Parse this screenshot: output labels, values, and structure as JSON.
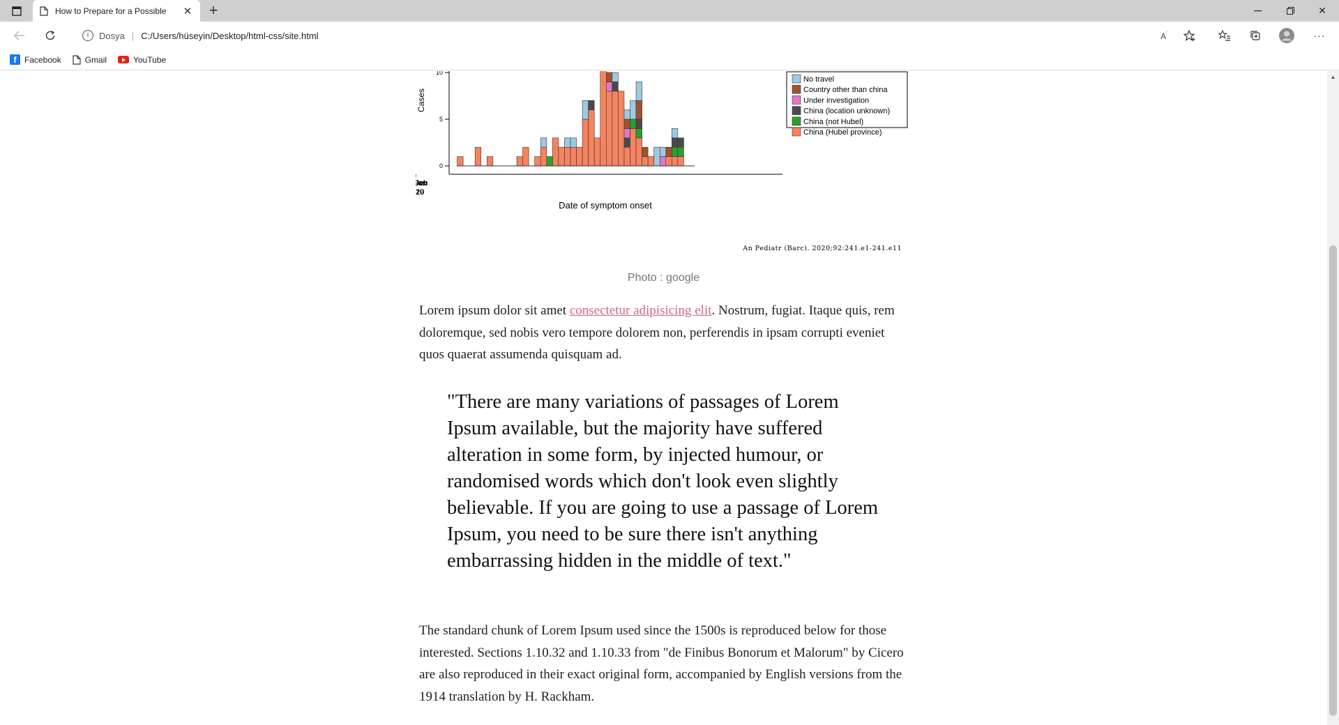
{
  "browser": {
    "tab_title": "How to Prepare for a Possible Coronavirus",
    "address_scheme": "Dosya",
    "address_url": "C:/Users/hüseyin/Desktop/html-css/site.html",
    "bookmarks": [
      {
        "label": "Facebook",
        "icon": "facebook-icon"
      },
      {
        "label": "Gmail",
        "icon": "page-icon"
      },
      {
        "label": "YouTube",
        "icon": "youtube-icon"
      }
    ]
  },
  "article": {
    "photo_caption": "Photo : google",
    "paragraph1_before_link": "Lorem ipsum dolor sit amet ",
    "paragraph1_link": "consectetur adipisicing elit",
    "paragraph1_after_link": ". Nostrum, fugiat. Itaque quis, rem doloremque, sed nobis vero tempore dolorem non, perferendis in ipsam corrupti eveniet quos quaerat assumenda quisquam ad.",
    "blockquote": "\"There are many variations of passages of Lorem Ipsum available, but the majority have suffered alteration in some form, by injected humour, or randomised words which don't look even slightly believable. If you are going to use a passage of Lorem Ipsum, you need to be sure there isn't anything embarrassing hidden in the middle of text.\"",
    "paragraph2": "The standard chunk of Lorem Ipsum used since the 1500s is reproduced below for those interested. Sections 1.10.32 and 1.10.33 from \"de Finibus Bonorum et Malorum\" by Cicero are also reproduced in their exact original form, accompanied by English versions from the 1914 translation by H. Rackham."
  },
  "chart_data": {
    "type": "bar",
    "stacked": true,
    "xlabel": "Date of symptom onset",
    "ylabel": "Cases",
    "source": "An Pediatr (Barc). 2020;92:241.e1-241.e11",
    "ylim": [
      0,
      11
    ],
    "yticks": [
      0,
      5,
      10
    ],
    "xticks": [
      {
        "line1": "30 Dec",
        "line2": "2019",
        "index": 1
      },
      {
        "line1": "06 Jan",
        "line2": "2020",
        "index": 8
      },
      {
        "line1": "13 Jan",
        "line2": "2020",
        "index": 15
      },
      {
        "line1": "20 Jan",
        "line2": "2020",
        "index": 22
      },
      {
        "line1": "27 Jan",
        "line2": "2020",
        "index": 29
      },
      {
        "line1": "03 Feb",
        "line2": "2020",
        "index": 36
      }
    ],
    "legend_position": "top-right",
    "legend": [
      {
        "key": "notravel",
        "label": "No travel",
        "color": "#9ecae1"
      },
      {
        "key": "other",
        "label": "Country other than china",
        "color": "#a0522d"
      },
      {
        "key": "invest",
        "label": "Under investigation",
        "color": "#e377c2"
      },
      {
        "key": "unknown",
        "label": "China (location unknown)",
        "color": "#4a4a4a"
      },
      {
        "key": "nothubei",
        "label": "China (not Hubel)",
        "color": "#2ca02c"
      },
      {
        "key": "hubei",
        "label": "China (Hubel province)",
        "color": "#f4845f"
      }
    ],
    "stack_order": [
      "hubei",
      "nothubei",
      "unknown",
      "invest",
      "other",
      "notravel"
    ],
    "days": [
      {
        "i": 1,
        "hubei": 1
      },
      {
        "i": 4,
        "hubei": 2
      },
      {
        "i": 6,
        "hubei": 1
      },
      {
        "i": 11,
        "hubei": 1
      },
      {
        "i": 12,
        "hubei": 2
      },
      {
        "i": 14,
        "hubei": 1
      },
      {
        "i": 15,
        "hubei": 2,
        "notravel": 1
      },
      {
        "i": 16,
        "nothubei": 1
      },
      {
        "i": 17,
        "hubei": 3
      },
      {
        "i": 18,
        "hubei": 2
      },
      {
        "i": 19,
        "hubei": 2,
        "notravel": 1
      },
      {
        "i": 20,
        "hubei": 2,
        "notravel": 1
      },
      {
        "i": 21,
        "hubei": 2
      },
      {
        "i": 22,
        "hubei": 5,
        "notravel": 2
      },
      {
        "i": 23,
        "hubei": 6,
        "unknown": 1
      },
      {
        "i": 24,
        "hubei": 3
      },
      {
        "i": 25,
        "hubei": 13
      },
      {
        "i": 26,
        "hubei": 8,
        "other": 1,
        "invest": 1
      },
      {
        "i": 27,
        "hubei": 8,
        "unknown": 1,
        "notravel": 1
      },
      {
        "i": 28,
        "hubei": 8
      },
      {
        "i": 29,
        "hubei": 2,
        "unknown": 1,
        "invest": 1,
        "other": 1,
        "notravel": 1
      },
      {
        "i": 30,
        "hubei": 4,
        "nothubei": 1,
        "notravel": 2
      },
      {
        "i": 31,
        "hubei": 3,
        "nothubei": 1,
        "unknown": 1,
        "other": 2,
        "notravel": 2
      },
      {
        "i": 32,
        "hubei": 1,
        "other": 1
      },
      {
        "i": 33,
        "hubei": 1
      },
      {
        "i": 34,
        "notravel": 2
      },
      {
        "i": 35,
        "invest": 1,
        "notravel": 1
      },
      {
        "i": 36,
        "hubei": 1,
        "other": 1
      },
      {
        "i": 37,
        "hubei": 1,
        "nothubei": 1,
        "unknown": 1,
        "notravel": 1
      },
      {
        "i": 38,
        "hubei": 1,
        "nothubei": 1,
        "unknown": 1
      }
    ]
  }
}
